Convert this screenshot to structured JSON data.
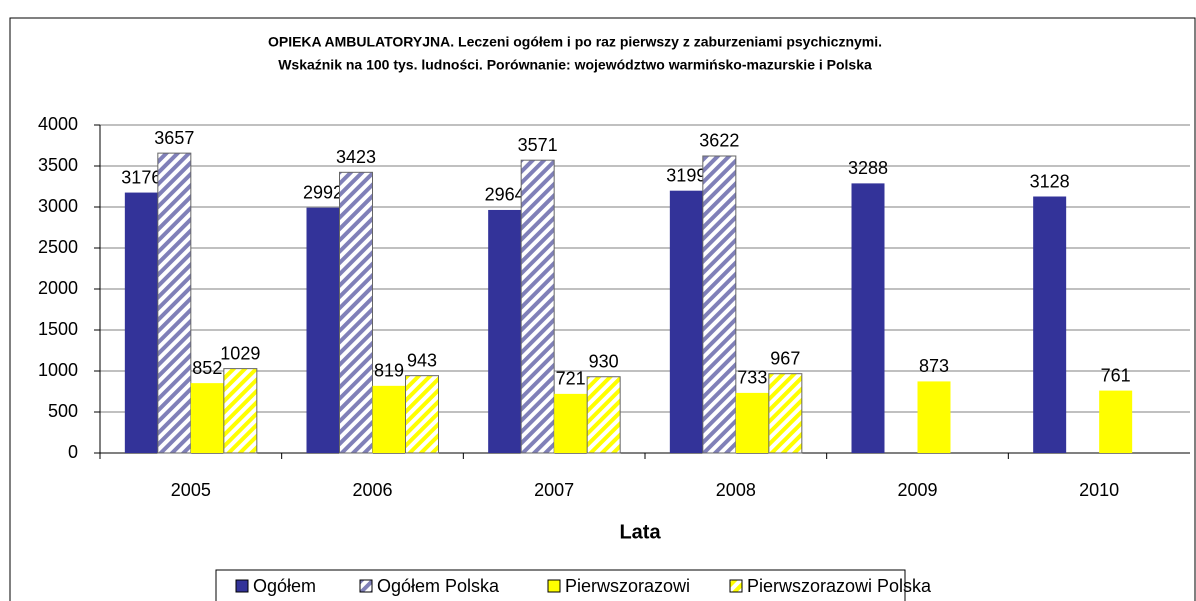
{
  "chart_data": {
    "type": "bar",
    "title": "OPIEKA AMBULATORYJNA. Leczeni ogółem i po raz pierwszy z zaburzeniami psychicznymi.",
    "subtitle": "Wskaźnik na 100 tys. ludności. Porównanie: województwo warmińsko-mazurskie i Polska",
    "x_label": "Lata",
    "categories": [
      "2005",
      "2006",
      "2007",
      "2008",
      "2009",
      "2010"
    ],
    "series": [
      {
        "name": "Ogółem",
        "color": "#333399",
        "hatch": false,
        "values": [
          3176,
          2992,
          2964,
          3199,
          3288,
          3128
        ]
      },
      {
        "name": "Ogółem Polska",
        "color": "#333399",
        "hatch": true,
        "values": [
          3657,
          3423,
          3571,
          3622,
          null,
          null
        ]
      },
      {
        "name": "Pierwszorazowi",
        "color": "#ffff00",
        "hatch": false,
        "values": [
          852,
          819,
          721,
          733,
          873,
          761
        ]
      },
      {
        "name": "Pierwszorazowi Polska",
        "color": "#ffff00",
        "hatch": true,
        "values": [
          1029,
          943,
          930,
          967,
          null,
          null
        ]
      }
    ],
    "ylim": [
      0,
      4000
    ],
    "yticks": [
      0,
      500,
      1000,
      1500,
      2000,
      2500,
      3000,
      3500,
      4000
    ],
    "grid": true,
    "legend": "bottom"
  }
}
